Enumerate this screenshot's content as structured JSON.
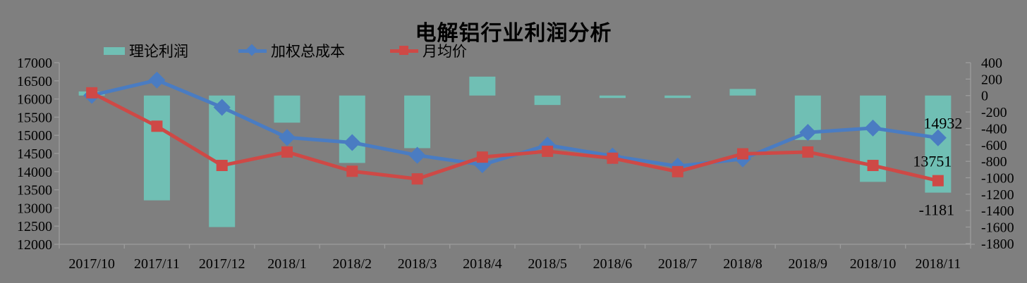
{
  "title": "电解铝行业利润分析",
  "colors": {
    "background": "#7F7F7F",
    "bar": "#70BFB4",
    "cost_line": "#4A7CC2",
    "price_line": "#CE4946",
    "axis_line": "#9C9C9C",
    "text": "#000000"
  },
  "legend": {
    "bar_label": "理论利润",
    "cost_label": "加权总成本",
    "price_label": "月均价"
  },
  "chart_data": {
    "type": "combo-bar-line",
    "title": "电解铝行业利润分析",
    "grid": false,
    "legend_position": "top",
    "categories": [
      "2017/10",
      "2017/11",
      "2017/12",
      "2018/1",
      "2018/2",
      "2018/3",
      "2018/4",
      "2018/5",
      "2018/6",
      "2018/7",
      "2018/8",
      "2018/9",
      "2018/10",
      "2018/11"
    ],
    "series": [
      {
        "name": "理论利润",
        "type": "bar",
        "axis": "right",
        "color": "#70BFB4",
        "values": [
          50,
          -1275,
          -1600,
          -330,
          -820,
          -640,
          230,
          -115,
          -25,
          -30,
          80,
          -540,
          -1050,
          -1181
        ]
      },
      {
        "name": "加权总成本",
        "type": "line",
        "marker": "diamond",
        "axis": "left",
        "color": "#4A7CC2",
        "values": [
          16100,
          16520,
          15770,
          14940,
          14800,
          14450,
          14190,
          14730,
          14430,
          14150,
          14350,
          15080,
          15200,
          14932
        ]
      },
      {
        "name": "月均价",
        "type": "line",
        "marker": "square",
        "axis": "left",
        "color": "#CE4946",
        "values": [
          16170,
          15250,
          14170,
          14540,
          14010,
          13800,
          14400,
          14560,
          14370,
          14000,
          14490,
          14540,
          14170,
          13751
        ]
      }
    ],
    "left_axis": {
      "min": 12000,
      "max": 17000,
      "step": 500,
      "ticks": [
        "17000",
        "16500",
        "16000",
        "15500",
        "15000",
        "14500",
        "14000",
        "13500",
        "13000",
        "12500",
        "12000"
      ]
    },
    "right_axis": {
      "min": -1800,
      "max": 400,
      "step": 200,
      "ticks": [
        "400",
        "200",
        "0",
        "-200",
        "-400",
        "-600",
        "-800",
        "-1000",
        "-1200",
        "-1400",
        "-1600",
        "-1800"
      ]
    },
    "data_labels": [
      {
        "series": 1,
        "index": 13,
        "text": "14932"
      },
      {
        "series": 2,
        "index": 13,
        "text": "13751"
      },
      {
        "series": 0,
        "index": 13,
        "text": "-1181"
      }
    ]
  }
}
